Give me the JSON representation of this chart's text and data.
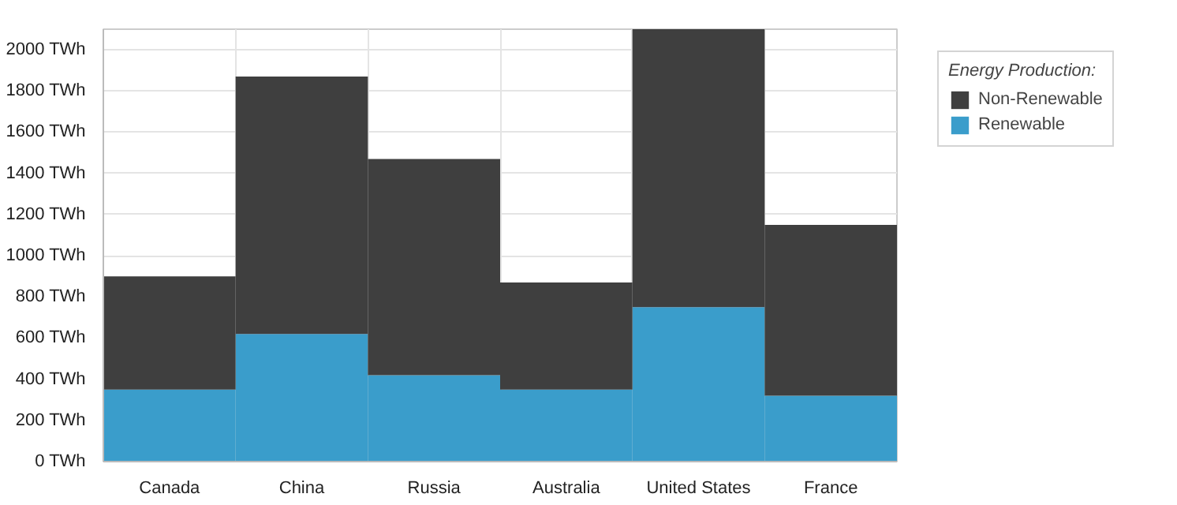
{
  "chart_data": {
    "type": "bar",
    "stacked": true,
    "categories": [
      "Canada",
      "China",
      "Russia",
      "Australia",
      "United States",
      "France"
    ],
    "series": [
      {
        "name": "Renewable",
        "color": "#3a9dcb",
        "values": [
          350,
          620,
          420,
          350,
          750,
          320
        ]
      },
      {
        "name": "Non-Renewable",
        "color": "#3f3f3f",
        "values": [
          550,
          1250,
          1050,
          520,
          1350,
          830
        ]
      }
    ],
    "legend_title": "Energy Production:",
    "legend": "right",
    "grid": true,
    "ylim": [
      0,
      2100
    ],
    "yticks": [
      {
        "value": 0,
        "label": "0 TWh"
      },
      {
        "value": 200,
        "label": "200 TWh"
      },
      {
        "value": 400,
        "label": "400 TWh"
      },
      {
        "value": 600,
        "label": "600 TWh"
      },
      {
        "value": 800,
        "label": "800 TWh"
      },
      {
        "value": 1000,
        "label": "1000 TWh"
      },
      {
        "value": 1200,
        "label": "1200 TWh"
      },
      {
        "value": 1400,
        "label": "1400 TWh"
      },
      {
        "value": 1600,
        "label": "1600 TWh"
      },
      {
        "value": 1800,
        "label": "1800 TWh"
      },
      {
        "value": 2000,
        "label": "2000 TWh"
      }
    ]
  }
}
